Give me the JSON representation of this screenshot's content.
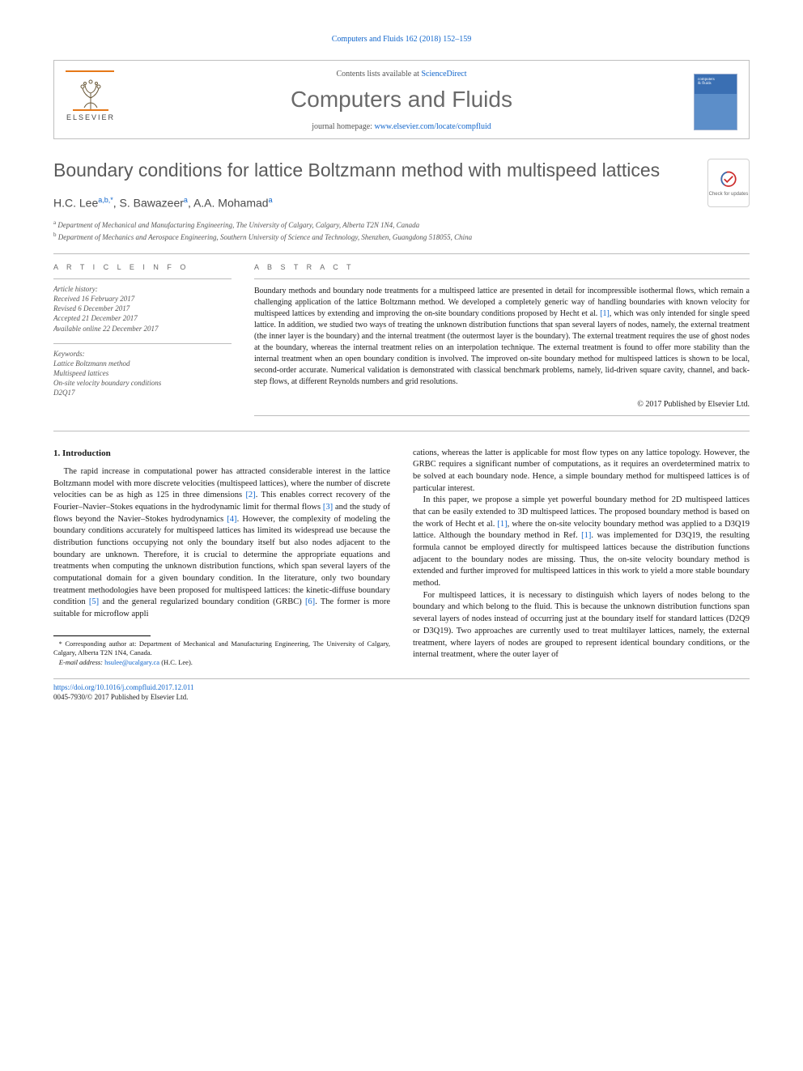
{
  "running_head": "Computers and Fluids 162 (2018) 152–159",
  "masthead": {
    "contents_prefix": "Contents lists available at ",
    "contents_link": "ScienceDirect",
    "journal": "Computers and Fluids",
    "home_prefix": "journal homepage: ",
    "home_link": "www.elsevier.com/locate/compfluid",
    "publisher": "ELSEVIER",
    "cover_line1": "computers",
    "cover_line2": "& fluids",
    "colors": {
      "orange": "#e67817",
      "link": "#1166cc",
      "grey": "#6a6a6a",
      "cover_bg": "#3a6fb3"
    }
  },
  "title": "Boundary conditions for lattice Boltzmann method with multispeed lattices",
  "check_badge": "Check for updates",
  "authors_html": "H.C. Lee|a,b,*|, S. Bawazeer|a|, A.A. Mohamad|a|",
  "authors": [
    {
      "name": "H.C. Lee",
      "sup": "a,b,*"
    },
    {
      "name": "S. Bawazeer",
      "sup": "a"
    },
    {
      "name": "A.A. Mohamad",
      "sup": "a"
    }
  ],
  "affiliations": [
    {
      "sup": "a",
      "text": "Department of Mechanical and Manufacturing Engineering, The University of Calgary, Calgary, Alberta T2N 1N4, Canada"
    },
    {
      "sup": "b",
      "text": "Department of Mechanics and Aerospace Engineering, Southern University of Science and Technology, Shenzhen, Guangdong 518055, China"
    }
  ],
  "article_info": {
    "heading": "A R T I C L E   I N F O",
    "history_hd": "Article history:",
    "history": [
      "Received 16 February 2017",
      "Revised 6 December 2017",
      "Accepted 21 December 2017",
      "Available online 22 December 2017"
    ],
    "keywords_hd": "Keywords:",
    "keywords": [
      "Lattice Boltzmann method",
      "Multispeed lattices",
      "On-site velocity boundary conditions",
      "D2Q17"
    ]
  },
  "abstract": {
    "heading": "A B S T R A C T",
    "text": "Boundary methods and boundary node treatments for a multispeed lattice are presented in detail for incompressible isothermal flows, which remain a challenging application of the lattice Boltzmann method. We developed a completely generic way of handling boundaries with known velocity for multispeed lattices by extending and improving the on-site boundary conditions proposed by Hecht et al. [1], which was only intended for single speed lattice. In addition, we studied two ways of treating the unknown distribution functions that span several layers of nodes, namely, the external treatment (the inner layer is the boundary) and the internal treatment (the outermost layer is the boundary). The external treatment requires the use of ghost nodes at the boundary, whereas the internal treatment relies on an interpolation technique. The external treatment is found to offer more stability than the internal treatment when an open boundary condition is involved. The improved on-site boundary method for multispeed lattices is shown to be local, second-order accurate. Numerical validation is demonstrated with classical benchmark problems, namely, lid-driven square cavity, channel, and back-step flows, at different Reynolds numbers and grid resolutions.",
    "copyright": "© 2017 Published by Elsevier Ltd."
  },
  "section1": {
    "heading": "1. Introduction",
    "p1": "The rapid increase in computational power has attracted considerable interest in the lattice Boltzmann model with more discrete velocities (multispeed lattices), where the number of discrete velocities can be as high as 125 in three dimensions [2]. This enables correct recovery of the Fourier–Navier–Stokes equations in the hydrodynamic limit for thermal flows [3] and the study of flows beyond the Navier–Stokes hydrodynamics [4]. However, the complexity of modeling the boundary conditions accurately for multispeed lattices has limited its widespread use because the distribution functions occupying not only the boundary itself but also nodes adjacent to the boundary are unknown. Therefore, it is crucial to determine the appropriate equations and treatments when computing the unknown distribution functions, which span several layers of the computational domain for a given boundary condition. In the literature, only two boundary treatment methodologies have been proposed for multispeed lattices: the kinetic-diffuse boundary condition [5] and the general regularized boundary condition (GRBC) [6]. The former is more suitable for microflow appli",
    "p2": "cations, whereas the latter is applicable for most flow types on any lattice topology. However, the GRBC requires a significant number of computations, as it requires an overdetermined matrix to be solved at each boundary node. Hence, a simple boundary method for multispeed lattices is of particular interest.",
    "p3": "In this paper, we propose a simple yet powerful boundary method for 2D multispeed lattices that can be easily extended to 3D multispeed lattices. The proposed boundary method is based on the work of Hecht et al. [1], where the on-site velocity boundary method was applied to a D3Q19 lattice. Although the boundary method in Ref. [1]. was implemented for D3Q19, the resulting formula cannot be employed directly for multispeed lattices because the distribution functions adjacent to the boundary nodes are missing. Thus, the on-site velocity boundary method is extended and further improved for multispeed lattices in this work to yield a more stable boundary method.",
    "p4": "For multispeed lattices, it is necessary to distinguish which layers of nodes belong to the boundary and which belong to the fluid. This is because the unknown distribution functions span several layers of nodes instead of occurring just at the boundary itself for standard lattices (D2Q9 or D3Q19). Two approaches are currently used to treat multilayer lattices, namely, the external treatment, where layers of nodes are grouped to represent identical boundary conditions, or the internal treatment, where the outer layer of"
  },
  "footnotes": {
    "corr": "Corresponding author at: Department of Mechanical and Manufacturing Engineering, The University of Calgary, Calgary, Alberta T2N 1N4, Canada.",
    "email_label": "E-mail address:",
    "email": "hsulee@ucalgary.ca",
    "email_person": "(H.C. Lee)."
  },
  "bottom": {
    "doi": "https://doi.org/10.1016/j.compfluid.2017.12.011",
    "issn": "0045-7930/© 2017 Published by Elsevier Ltd."
  }
}
